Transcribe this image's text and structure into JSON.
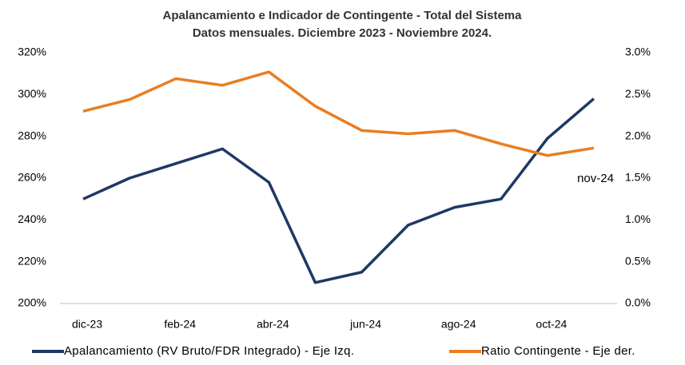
{
  "chart_data": {
    "type": "line",
    "title": "Apalancamiento e Indicador de Contingente  - Total del Sistema",
    "subtitle": "Datos mensuales. Diciembre  2023 - Noviembre 2024.",
    "categories": [
      "dic-23",
      null,
      "feb-24",
      null,
      "abr-24",
      null,
      "jun-24",
      null,
      "ago-24",
      null,
      "oct-24",
      null
    ],
    "series": [
      {
        "name": "Apalancamiento (RV Bruto/FDR Integrado) - Eje Izq.",
        "color": "#1f3864",
        "axis": "y",
        "values": [
          250,
          260,
          267,
          274,
          258,
          210,
          215,
          237.5,
          246,
          250,
          279,
          298
        ]
      },
      {
        "name": "Ratio Contingente - Eje der.",
        "color": "#e97e22",
        "axis": "y2",
        "values": [
          2.3,
          2.44,
          2.69,
          2.61,
          2.77,
          2.36,
          2.07,
          2.03,
          2.07,
          1.91,
          1.77,
          1.86
        ]
      }
    ],
    "ylim": [
      200,
      320
    ],
    "yticks": [
      {
        "value": 200,
        "label": "200%"
      },
      {
        "value": 220,
        "label": "220%"
      },
      {
        "value": 240,
        "label": "240%"
      },
      {
        "value": 260,
        "label": "260%"
      },
      {
        "value": 280,
        "label": "280%"
      },
      {
        "value": 300,
        "label": "300%"
      },
      {
        "value": 320,
        "label": "320%"
      }
    ],
    "y2lim": [
      0,
      3.0
    ],
    "y2ticks": [
      {
        "value": 0,
        "label": "0.0%"
      },
      {
        "value": 0.5,
        "label": "0.5%"
      },
      {
        "value": 1.0,
        "label": "1.0%"
      },
      {
        "value": 1.5,
        "label": "1.5%"
      },
      {
        "value": 2.0,
        "label": "2.0%"
      },
      {
        "value": 2.5,
        "label": "2.5%"
      },
      {
        "value": 3.0,
        "label": "3.0%"
      }
    ],
    "annotation": "nov-24",
    "grid": false,
    "legend": "bottom"
  }
}
